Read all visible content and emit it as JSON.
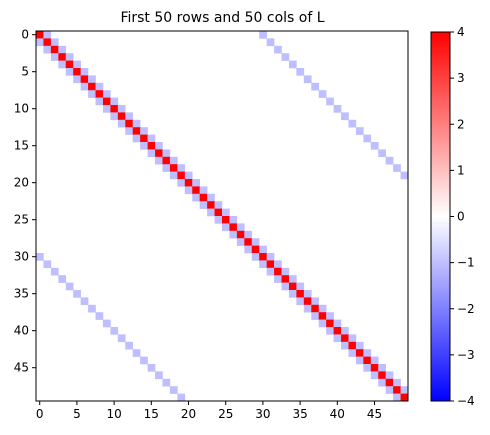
{
  "chart_data": {
    "type": "heatmap",
    "title": "First 50 rows and 50 cols of L",
    "rows": 50,
    "cols": 50,
    "matrix": "tridiagonal_plus_offset",
    "diagonal_value": 4,
    "neighbor_value": -1,
    "offdiagonal_value": -1,
    "offdiagonal_offset": 30,
    "note_cells": "L[i][i]=4; L[i][i±1]=-1 (except between indices 29/30 break not applied); L[i][i±30]=-1",
    "colormap": "bwr",
    "vmin": -4,
    "vmax": 4,
    "x_ticks": [
      0,
      5,
      10,
      15,
      20,
      25,
      30,
      35,
      40,
      45
    ],
    "y_ticks": [
      0,
      5,
      10,
      15,
      20,
      25,
      30,
      35,
      40,
      45
    ],
    "colorbar_ticks": [
      4,
      3,
      2,
      1,
      0,
      -1,
      -2,
      -3,
      -4
    ]
  }
}
